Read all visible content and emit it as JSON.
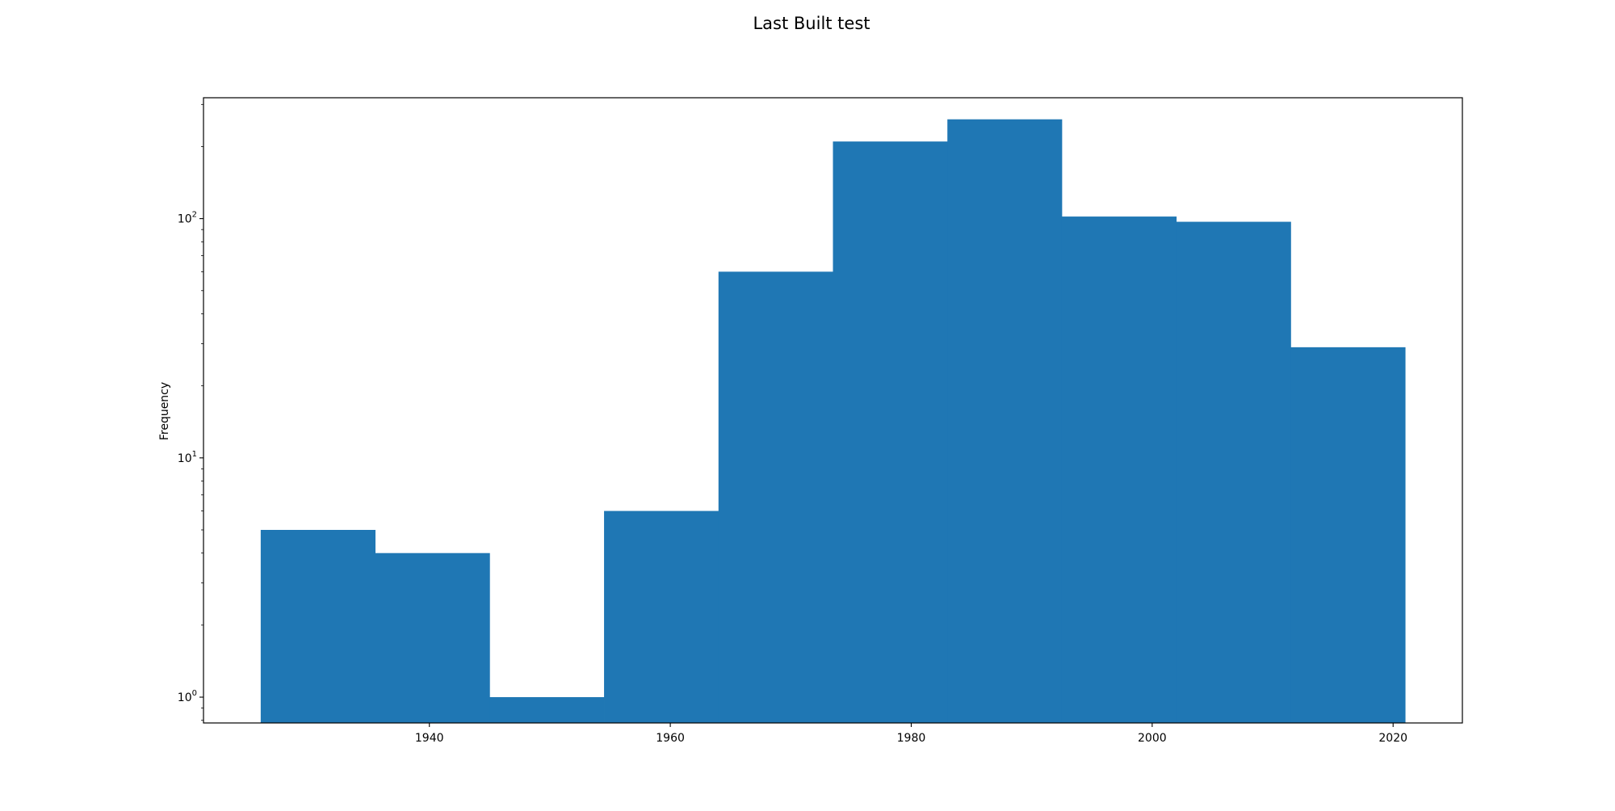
{
  "chart_data": {
    "type": "bar",
    "title": "Last Built test",
    "xlabel": "",
    "ylabel": "Frequency",
    "yscale": "log",
    "grid": false,
    "bar_color": "#1f77b4",
    "bin_edges": [
      1926,
      1935.5,
      1945,
      1954.5,
      1964,
      1973.5,
      1983,
      1992.5,
      2002,
      2011.5,
      2021
    ],
    "values": [
      5,
      4,
      1,
      6,
      60,
      210,
      260,
      102,
      97,
      29
    ],
    "xlim": [
      1921.25,
      2025.75
    ],
    "ylim": [
      0.78,
      320
    ],
    "x_ticks": [
      1940,
      1960,
      1980,
      2000,
      2020
    ],
    "x_tick_labels": [
      "1940",
      "1960",
      "1980",
      "2000",
      "2020"
    ],
    "y_major_ticks": [
      1,
      10,
      100
    ],
    "y_tick_labels": [
      {
        "base": "10",
        "exp": "0"
      },
      {
        "base": "10",
        "exp": "1"
      },
      {
        "base": "10",
        "exp": "2"
      }
    ]
  }
}
